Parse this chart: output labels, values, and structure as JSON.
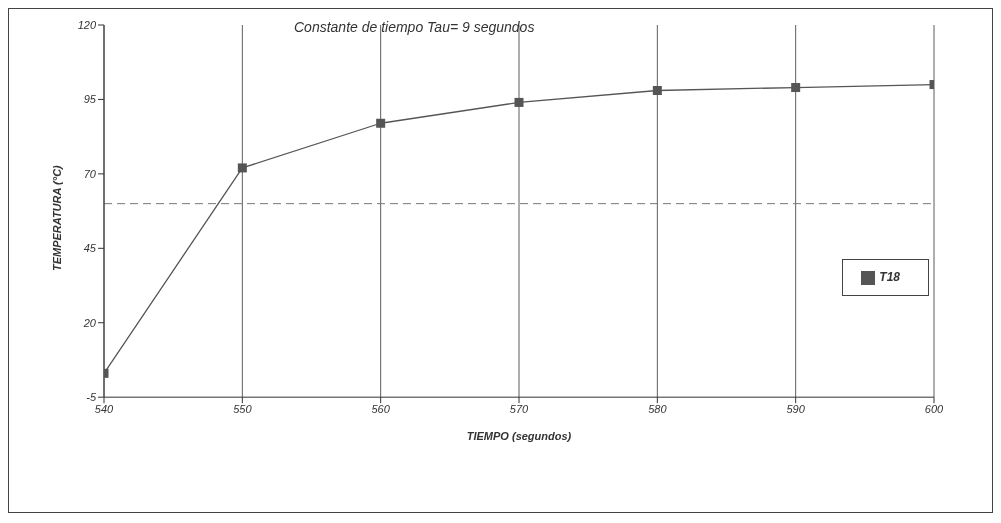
{
  "chart_data": {
    "type": "line",
    "title": "Constante de tiempo Tau= 9 segundos",
    "xlabel": "TIEMPO (segundos)",
    "ylabel": "TEMPERATURA (°C)",
    "x": [
      540,
      550,
      560,
      570,
      580,
      590,
      600
    ],
    "series": [
      {
        "name": "T18",
        "color": "#555555",
        "values": [
          3,
          72,
          87,
          94,
          98,
          99,
          100
        ]
      }
    ],
    "xlim": [
      540,
      600
    ],
    "xticks": [
      540,
      550,
      560,
      570,
      580,
      590,
      600
    ],
    "ylim": [
      -5,
      120
    ],
    "yticks": [
      -5,
      20,
      45,
      70,
      95,
      120
    ],
    "ref_lines": [
      {
        "axis": "y",
        "value": 60,
        "line_style": "dashed",
        "color": "#777777"
      }
    ],
    "grid": "x",
    "legend": "right",
    "marker": "square",
    "line_style": "solid"
  }
}
